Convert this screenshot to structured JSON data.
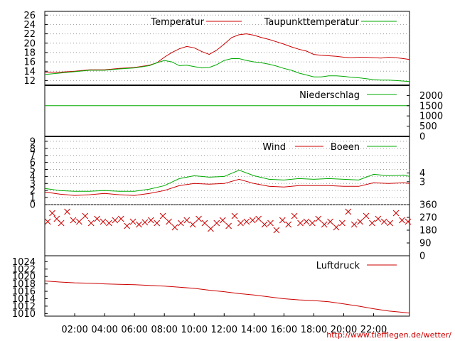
{
  "footer_url": "http://www.tiefflegen.de/wetter/",
  "x_axis": {
    "tick_labels": [
      "02:00",
      "04:00",
      "06:00",
      "08:00",
      "10:00",
      "12:00",
      "14:00",
      "16:00",
      "18:00",
      "20:00",
      "22:00"
    ],
    "tick_hours": [
      2,
      4,
      6,
      8,
      10,
      12,
      14,
      16,
      18,
      20,
      22
    ],
    "range_hours": [
      0,
      24.4
    ]
  },
  "colors": {
    "red": "#cc0000",
    "green": "#00aa00",
    "grid": "#9a9a9a"
  },
  "chart_data": [
    {
      "type": "line",
      "panel": "temperature",
      "y_ticks": [
        12,
        14,
        16,
        18,
        20,
        22,
        24,
        26
      ],
      "ylim": [
        11,
        26.8
      ],
      "grid": true,
      "legend": "top-right",
      "x": [
        0,
        1,
        2,
        3,
        4,
        5,
        6,
        7,
        7.5,
        8,
        8.5,
        9,
        9.5,
        10,
        10.5,
        11,
        11.5,
        12,
        12.5,
        13,
        13.5,
        14,
        14.5,
        15,
        15.5,
        16,
        16.5,
        17,
        17.5,
        18,
        18.5,
        19,
        19.5,
        20,
        20.5,
        21,
        21.5,
        22,
        22.5,
        23,
        23.5,
        24,
        24.4
      ],
      "series": [
        {
          "name": "Temperatur",
          "color": "#cc0000",
          "values": [
            13.8,
            13.8,
            14,
            14.3,
            14.3,
            14.6,
            14.8,
            15.3,
            15.8,
            17,
            18,
            18.8,
            19.3,
            19,
            18.2,
            17.6,
            18.5,
            19.8,
            21.2,
            21.8,
            22,
            21.7,
            21.2,
            20.8,
            20.3,
            19.8,
            19.2,
            18.7,
            18.3,
            17.6,
            17.4,
            17.3,
            17.2,
            17,
            16.9,
            17,
            17,
            16.9,
            16.8,
            17,
            16.9,
            16.7,
            16.5
          ]
        },
        {
          "name": "Taupunkttemperatur",
          "color": "#00aa00",
          "values": [
            13.3,
            13.6,
            13.9,
            14.2,
            14.2,
            14.5,
            14.7,
            15.2,
            15.8,
            16.3,
            16,
            15.2,
            15.3,
            15,
            14.7,
            14.8,
            15.4,
            16.3,
            16.7,
            16.7,
            16.3,
            16,
            15.8,
            15.5,
            15.1,
            14.6,
            14.2,
            13.6,
            13.2,
            12.8,
            12.8,
            13,
            13,
            12.9,
            12.7,
            12.6,
            12.4,
            12.2,
            12.1,
            12.1,
            12,
            11.9,
            11.8
          ]
        }
      ]
    },
    {
      "type": "line",
      "panel": "precipitation",
      "y_ticks_right": [
        0,
        500,
        1000,
        1500,
        2000
      ],
      "ylim": [
        0,
        2500
      ],
      "legend": "top-right",
      "series": [
        {
          "name": "Niederschlag",
          "color": "#00aa00",
          "x": [
            0,
            24.4
          ],
          "values": [
            1500,
            1500
          ]
        }
      ]
    },
    {
      "type": "line",
      "panel": "wind",
      "y_ticks": [
        0,
        1,
        2,
        3,
        4,
        5,
        6,
        7,
        8,
        9
      ],
      "y_ticks_right": [
        3,
        4
      ],
      "ylim": [
        0,
        9.7
      ],
      "grid": true,
      "legend": "top-right",
      "x": [
        0,
        1,
        2,
        3,
        4,
        5,
        6,
        7,
        8,
        9,
        10,
        11,
        12,
        13,
        14,
        15,
        16,
        17,
        18,
        19,
        20,
        21,
        22,
        23,
        24,
        24.4
      ],
      "series": [
        {
          "name": "Wind",
          "color": "#cc0000",
          "values": [
            1.8,
            1.5,
            1.3,
            1.4,
            1.6,
            1.4,
            1.3,
            1.6,
            2,
            2.7,
            3,
            2.9,
            3,
            3.6,
            3,
            2.6,
            2.5,
            2.7,
            2.7,
            2.7,
            2.6,
            2.6,
            3.1,
            3,
            3.1,
            3
          ]
        },
        {
          "name": "Boeen",
          "color": "#00aa00",
          "values": [
            2.3,
            2,
            1.9,
            1.9,
            2,
            1.9,
            1.9,
            2.2,
            2.7,
            3.7,
            4.1,
            3.9,
            4,
            4.9,
            4.1,
            3.6,
            3.5,
            3.7,
            3.6,
            3.7,
            3.6,
            3.5,
            4.3,
            4.1,
            4.2,
            4
          ]
        }
      ]
    },
    {
      "type": "scatter",
      "panel": "wind-direction",
      "y_ticks_right": [
        0,
        90,
        180,
        270,
        360
      ],
      "ylim": [
        0,
        360
      ],
      "marker": "x",
      "series": [
        {
          "name": "",
          "color": "#cc0000",
          "x": [
            0.2,
            0.5,
            0.8,
            1.1,
            1.5,
            1.9,
            2.3,
            2.7,
            3.1,
            3.5,
            3.9,
            4.3,
            4.7,
            5.1,
            5.5,
            5.9,
            6.3,
            6.7,
            7.1,
            7.5,
            7.9,
            8.3,
            8.7,
            9.1,
            9.5,
            9.9,
            10.3,
            10.7,
            11.1,
            11.5,
            11.9,
            12.3,
            12.7,
            13.1,
            13.5,
            13.9,
            14.3,
            14.7,
            15.1,
            15.5,
            15.9,
            16.3,
            16.7,
            17.1,
            17.5,
            17.9,
            18.3,
            18.7,
            19.1,
            19.5,
            19.9,
            20.3,
            20.7,
            21.1,
            21.5,
            21.9,
            22.3,
            22.7,
            23.1,
            23.5,
            23.9,
            24.3
          ],
          "values": [
            240,
            300,
            260,
            230,
            310,
            250,
            240,
            280,
            230,
            260,
            240,
            230,
            250,
            260,
            210,
            240,
            220,
            235,
            250,
            230,
            280,
            240,
            200,
            230,
            250,
            220,
            260,
            230,
            190,
            230,
            250,
            210,
            280,
            230,
            240,
            250,
            260,
            220,
            230,
            180,
            250,
            220,
            280,
            230,
            240,
            230,
            260,
            220,
            240,
            200,
            230,
            310,
            220,
            240,
            280,
            230,
            260,
            240,
            230,
            300,
            250,
            240
          ]
        }
      ]
    },
    {
      "type": "line",
      "panel": "pressure",
      "y_ticks": [
        1010,
        1012,
        1014,
        1016,
        1018,
        1020,
        1022,
        1024
      ],
      "ylim": [
        1009.3,
        1025.6
      ],
      "legend": "top-right",
      "x": [
        0,
        1,
        2,
        3,
        4,
        5,
        6,
        7,
        8,
        9,
        10,
        11,
        12,
        13,
        14,
        15,
        16,
        17,
        18,
        19,
        20,
        21,
        22,
        23,
        24,
        24.4
      ],
      "series": [
        {
          "name": "Luftdruck",
          "color": "#cc0000",
          "values": [
            1018.8,
            1018.5,
            1018.3,
            1018.2,
            1018.0,
            1017.9,
            1017.8,
            1017.6,
            1017.4,
            1017.1,
            1016.8,
            1016.3,
            1015.9,
            1015.4,
            1015.0,
            1014.5,
            1014.0,
            1013.7,
            1013.5,
            1013.2,
            1012.6,
            1012.0,
            1011.3,
            1010.7,
            1010.3,
            1010.1
          ]
        }
      ]
    }
  ]
}
